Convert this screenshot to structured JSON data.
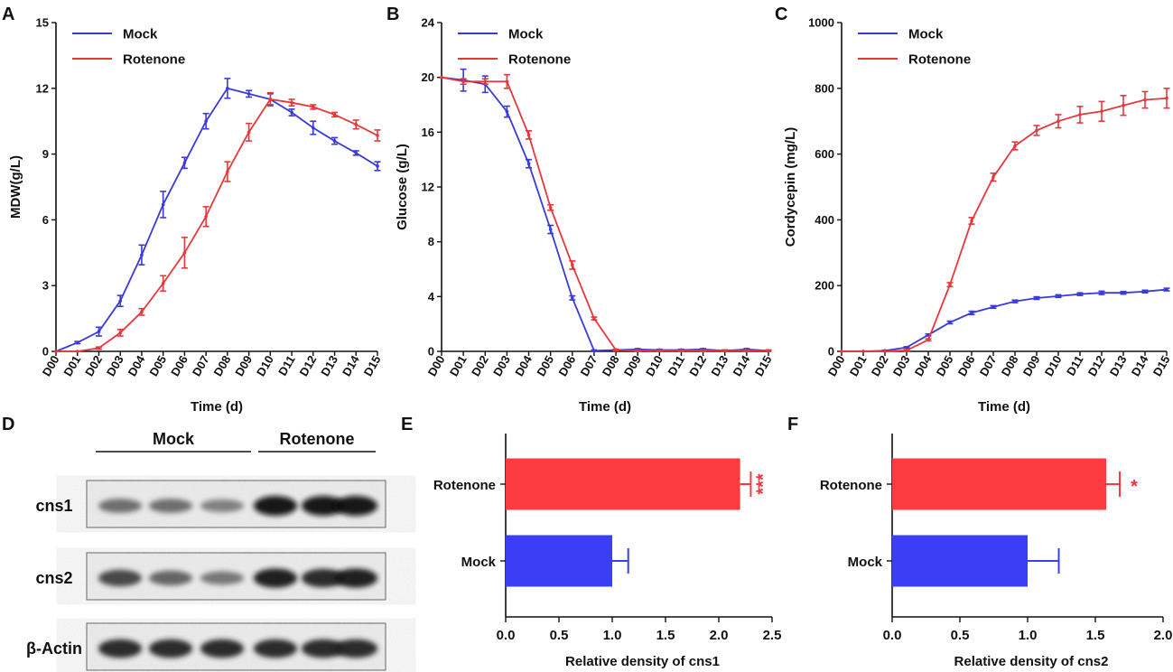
{
  "colors": {
    "mock": "#3a3ad9",
    "rotenone": "#e8373b",
    "bar_mock": "#3b3ef5",
    "bar_rotenone": "#fb3b3f"
  },
  "days": [
    "D00",
    "D01",
    "D02",
    "D03",
    "D04",
    "D05",
    "D06",
    "D07",
    "D08",
    "D09",
    "D10",
    "D11",
    "D12",
    "D13",
    "D14",
    "D15"
  ],
  "chart_data": [
    {
      "panel": "A",
      "type": "line",
      "xlabel": "Time (d)",
      "ylabel": "MDW(g/L)",
      "ylim": [
        0,
        15
      ],
      "yticks": [
        0,
        3,
        6,
        9,
        12,
        15
      ],
      "legend_position": "top-left",
      "series": [
        {
          "name": "Mock",
          "values": [
            0,
            0.4,
            0.9,
            2.3,
            4.4,
            6.7,
            8.6,
            10.5,
            12.0,
            11.75,
            11.5,
            10.9,
            10.2,
            9.6,
            9.05,
            8.45
          ],
          "errors": [
            0,
            0.05,
            0.2,
            0.25,
            0.45,
            0.6,
            0.25,
            0.35,
            0.45,
            0.15,
            0.25,
            0.15,
            0.3,
            0.15,
            0.1,
            0.2
          ]
        },
        {
          "name": "Rotenone",
          "values": [
            0,
            0,
            0.15,
            0.85,
            1.8,
            3.1,
            4.5,
            6.15,
            8.2,
            10.0,
            11.5,
            11.35,
            11.15,
            10.8,
            10.35,
            9.85
          ],
          "errors": [
            0,
            0,
            0.05,
            0.15,
            0.15,
            0.35,
            0.7,
            0.45,
            0.45,
            0.4,
            0.3,
            0.15,
            0.1,
            0.1,
            0.2,
            0.25
          ]
        }
      ]
    },
    {
      "panel": "B",
      "type": "line",
      "xlabel": "Time (d)",
      "ylabel": "Glucose (g/L)",
      "ylim": [
        0,
        24
      ],
      "yticks": [
        0,
        4,
        8,
        12,
        16,
        20,
        24
      ],
      "legend_position": "top-center",
      "series": [
        {
          "name": "Mock",
          "values": [
            20,
            19.8,
            19.5,
            17.5,
            13.7,
            8.9,
            3.9,
            0.05,
            0.1,
            0.15,
            0.1,
            0.1,
            0.15,
            0.05,
            0.15,
            0.05
          ],
          "errors": [
            0,
            0.8,
            0.6,
            0.4,
            0.3,
            0.3,
            0.15,
            0.05,
            0.05,
            0.05,
            0.05,
            0.05,
            0.05,
            0.05,
            0.05,
            0.05
          ]
        },
        {
          "name": "Rotenone",
          "values": [
            20,
            19.7,
            19.7,
            19.7,
            15.8,
            10.5,
            6.3,
            2.4,
            0.1,
            0.05,
            0.05,
            0.05,
            0.05,
            0.05,
            0.05,
            0.05
          ],
          "errors": [
            0,
            0.2,
            0.2,
            0.5,
            0.3,
            0.2,
            0.3,
            0.1,
            0.05,
            0.05,
            0.05,
            0.05,
            0.05,
            0.05,
            0.05,
            0.05
          ]
        }
      ]
    },
    {
      "panel": "C",
      "type": "line",
      "xlabel": "Time (d)",
      "ylabel": "Cordycepin (mg/L)",
      "ylim": [
        0,
        1000
      ],
      "yticks": [
        0,
        200,
        400,
        600,
        800,
        1000
      ],
      "legend_position": "top-center",
      "series": [
        {
          "name": "Mock",
          "values": [
            0,
            0,
            2,
            12,
            50,
            88,
            117,
            135,
            152,
            162,
            168,
            174,
            178,
            178,
            182,
            188
          ],
          "errors": [
            0,
            0,
            1,
            2,
            3,
            4,
            5,
            4,
            4,
            4,
            4,
            4,
            5,
            4,
            4,
            4
          ]
        },
        {
          "name": "Rotenone",
          "values": [
            0,
            0,
            0,
            3,
            35,
            203,
            397,
            530,
            625,
            672,
            700,
            720,
            730,
            748,
            765,
            770
          ],
          "errors": [
            0,
            0,
            0,
            2,
            3,
            6,
            10,
            12,
            12,
            15,
            20,
            25,
            30,
            30,
            25,
            30
          ]
        }
      ]
    },
    {
      "panel": "E",
      "type": "bar",
      "orientation": "horizontal",
      "xlabel": "Relative density of cns1",
      "xlim": [
        0,
        2.5
      ],
      "xticks": [
        0.0,
        0.5,
        1.0,
        1.5,
        2.0,
        2.5
      ],
      "categories": [
        "Rotenone",
        "Mock"
      ],
      "values": [
        2.2,
        1.0
      ],
      "errors": [
        0.1,
        0.15
      ],
      "significance": "***"
    },
    {
      "panel": "F",
      "type": "bar",
      "orientation": "horizontal",
      "xlabel": "Relative density of cns2",
      "xlim": [
        0,
        2.0
      ],
      "xticks": [
        0.0,
        0.5,
        1.0,
        1.5,
        2.0
      ],
      "categories": [
        "Rotenone",
        "Mock"
      ],
      "values": [
        1.58,
        1.0
      ],
      "errors": [
        0.1,
        0.23
      ],
      "significance": "*"
    }
  ],
  "blot": {
    "panel": "D",
    "groups": [
      "Mock",
      "Rotenone"
    ],
    "rows": [
      {
        "label": "cns1",
        "intensity": [
          0.55,
          0.55,
          0.45,
          1.0,
          1.0,
          1.0
        ]
      },
      {
        "label": "cns2",
        "intensity": [
          0.75,
          0.6,
          0.5,
          0.95,
          0.9,
          0.95
        ]
      },
      {
        "label": "β-Actin",
        "intensity": [
          0.9,
          0.9,
          0.9,
          0.9,
          0.9,
          0.9
        ]
      }
    ]
  },
  "ticks_fmt": {
    "E": [
      "0.0",
      "0.5",
      "1.0",
      "1.5",
      "2.0",
      "2.5"
    ],
    "F": [
      "0.0",
      "0.5",
      "1.0",
      "1.5",
      "2.0"
    ]
  }
}
